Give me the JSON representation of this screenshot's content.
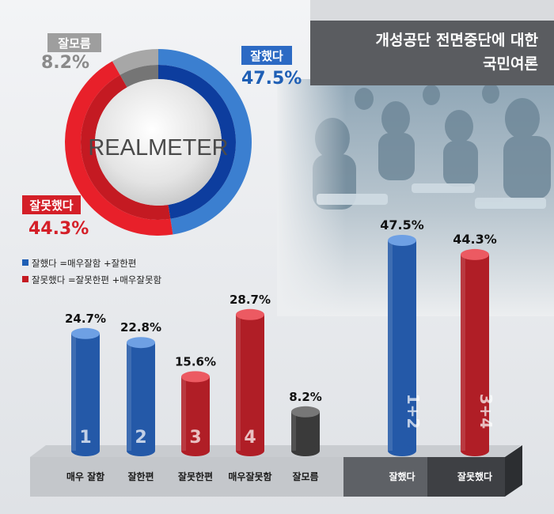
{
  "header": {
    "title_line1": "개성공단 전면중단에 대한",
    "title_line2": "국민여론"
  },
  "logo": "REALMETER",
  "donut": {
    "slices": [
      {
        "label": "잘했다",
        "value": 47.5,
        "value_label": "47.5%",
        "color": "#3b7fd0",
        "inner_color": "#0d3d9e",
        "label_color": "#1f5fb5"
      },
      {
        "label": "잘못했다",
        "value": 44.3,
        "value_label": "44.3%",
        "color": "#e8202a",
        "inner_color": "#c41a22",
        "label_color": "#d41f28"
      },
      {
        "label": "잘모름",
        "value": 8.2,
        "value_label": "8.2%",
        "color": "#a7a7a7",
        "inner_color": "#757575",
        "label_color": "#8a8a8a"
      }
    ]
  },
  "legend": [
    {
      "text": "잘했다 =매우잘함 +잘한편",
      "color": "#1f5fb5"
    },
    {
      "text": "잘못했다 =잘못한편 +매우잘못함",
      "color": "#c41a22"
    }
  ],
  "chart_data": [
    {
      "type": "bar",
      "categories": [
        "매우 잘함",
        "잘한편",
        "잘못한편",
        "매우잘못함",
        "잘모름"
      ],
      "values": [
        24.7,
        22.8,
        15.6,
        28.7,
        8.2
      ],
      "value_labels": [
        "24.7%",
        "22.8%",
        "15.6%",
        "28.7%",
        "8.2%"
      ],
      "bar_numbers": [
        "1",
        "2",
        "3",
        "4",
        ""
      ],
      "colors": [
        "#2459a8",
        "#2459a8",
        "#b01e26",
        "#b01e26",
        "#3a3a3a"
      ],
      "top_colors": [
        "#6ea0e4",
        "#6ea0e4",
        "#ec5a62",
        "#ec5a62",
        "#777777"
      ],
      "title": "",
      "xlabel": "",
      "ylabel": "",
      "ylim": [
        0,
        50
      ]
    },
    {
      "type": "bar",
      "categories": [
        "잘했다",
        "잘못했다"
      ],
      "values": [
        47.5,
        44.3
      ],
      "value_labels": [
        "47.5%",
        "44.3%"
      ],
      "bar_numbers": [
        "1+2",
        "3+4"
      ],
      "colors": [
        "#2459a8",
        "#b01e26"
      ],
      "top_colors": [
        "#6ea0e4",
        "#ec5a62"
      ],
      "title": "",
      "xlabel": "",
      "ylabel": "",
      "ylim": [
        0,
        50
      ]
    }
  ]
}
